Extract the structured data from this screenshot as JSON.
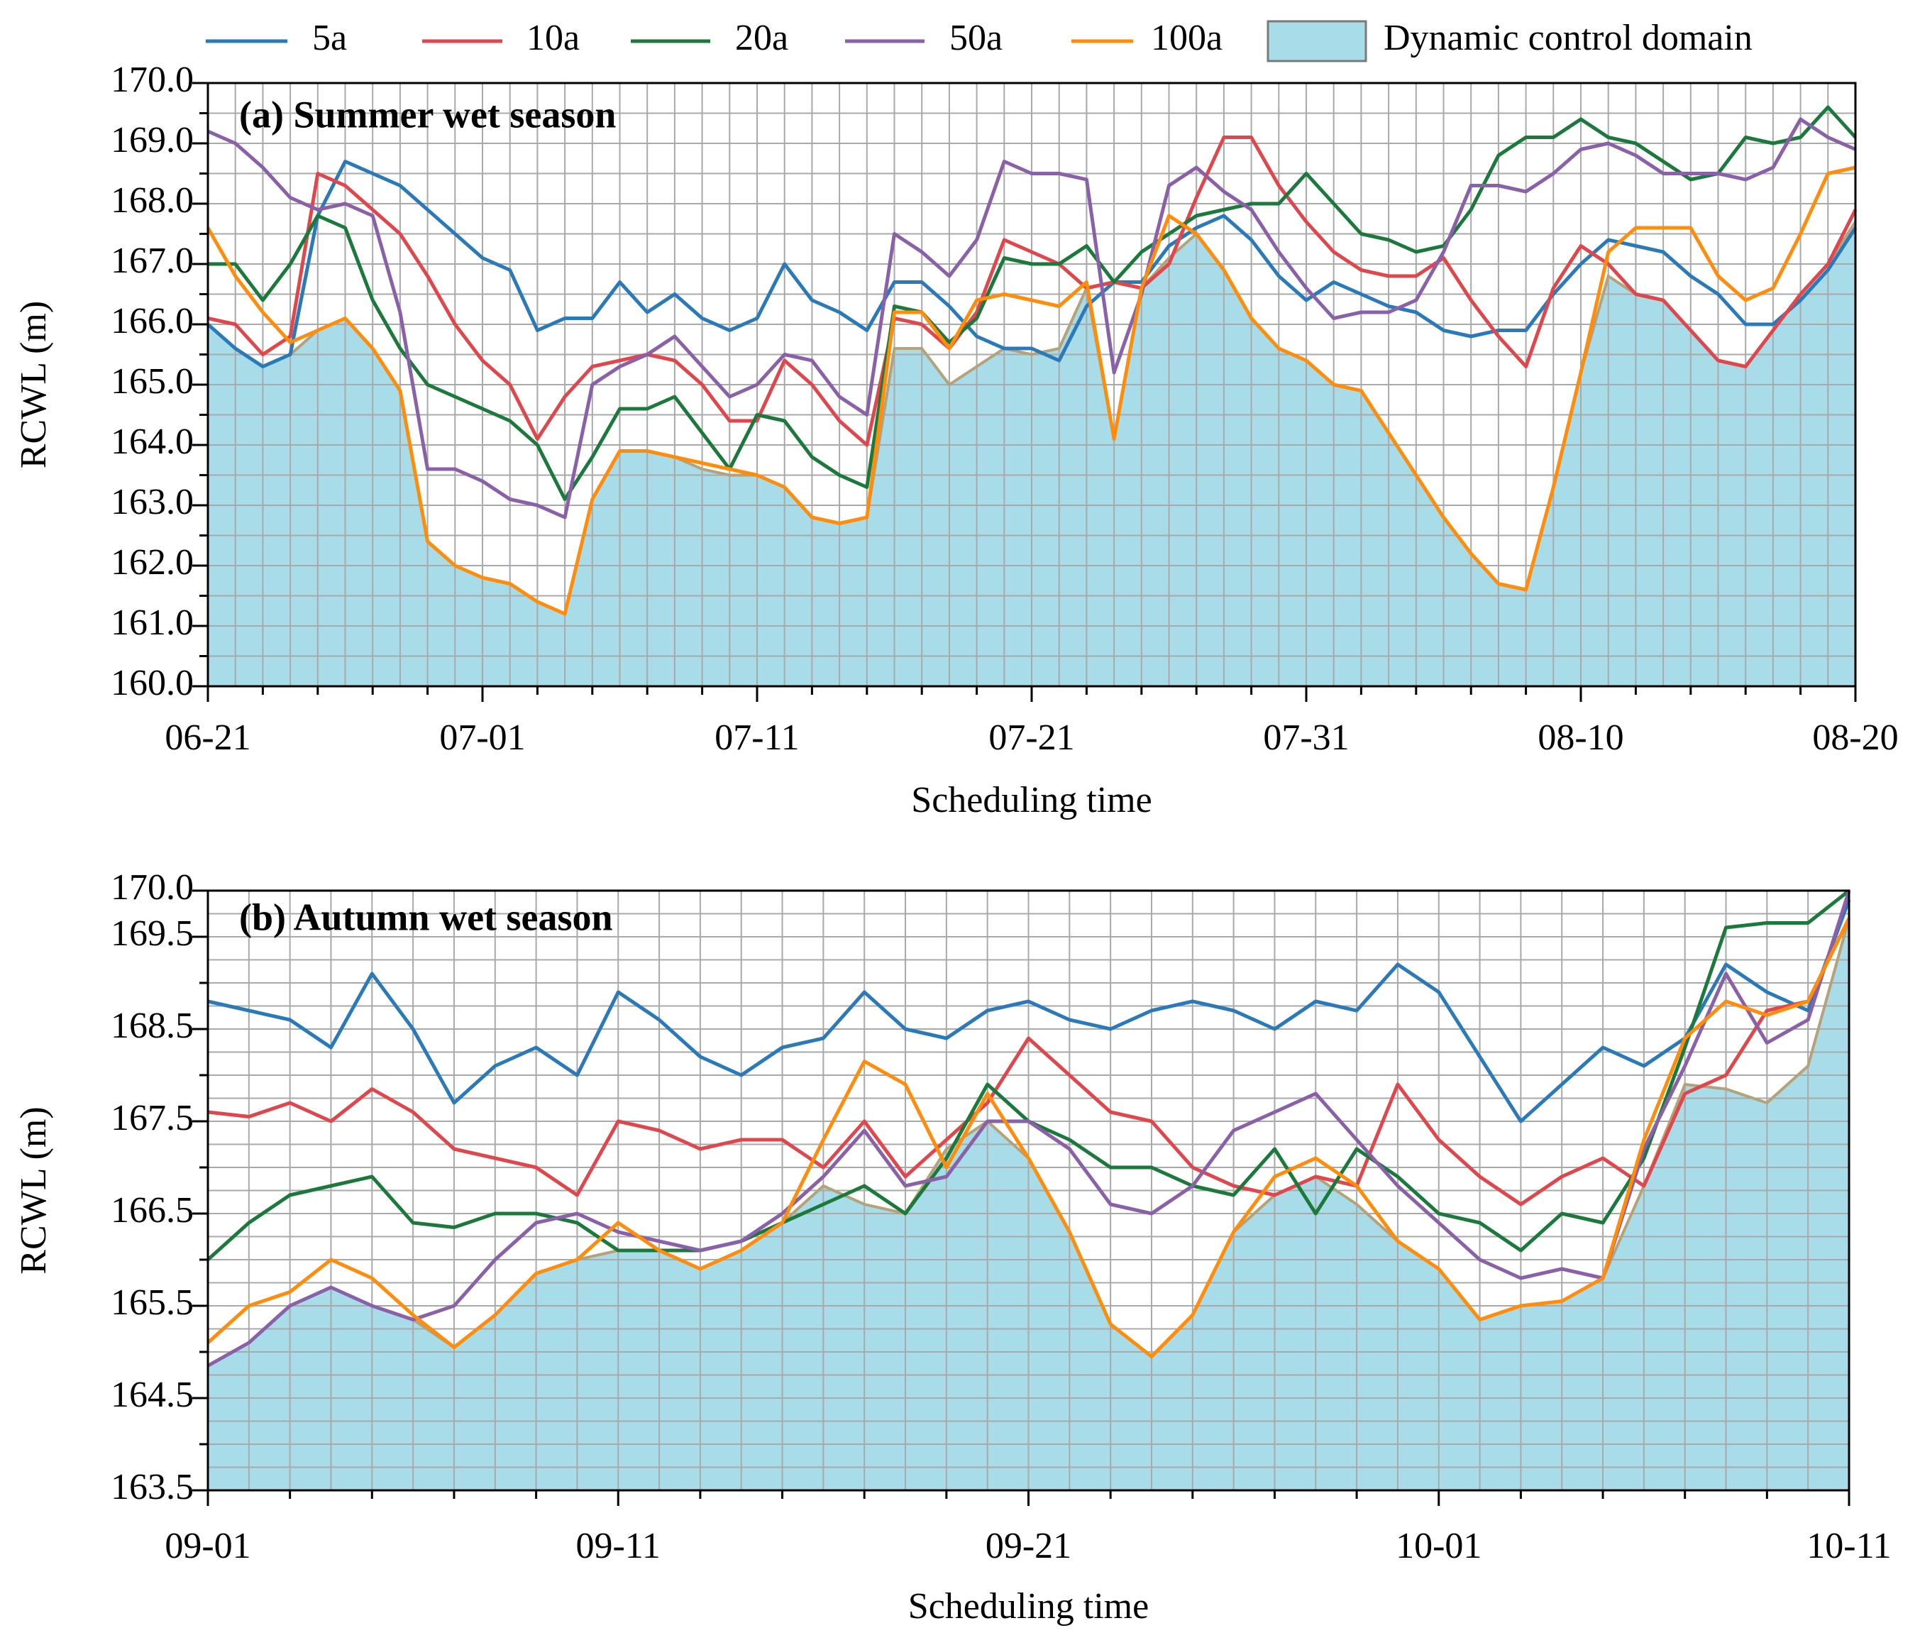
{
  "chart_data": [
    {
      "type": "line",
      "title": "(a) Summer wet season",
      "xlabel": "Scheduling time",
      "ylabel": "RCWL (m)",
      "x": [
        0,
        1,
        2,
        3,
        4,
        5,
        6,
        7,
        8,
        9,
        10,
        11,
        12,
        13,
        14,
        15,
        16,
        17,
        18,
        19,
        20,
        21,
        22,
        23,
        24,
        25,
        26,
        27,
        28,
        29,
        30,
        31,
        32,
        33,
        34,
        35,
        36,
        37,
        38,
        39,
        40,
        41,
        42,
        43,
        44,
        45,
        46,
        47,
        48,
        49,
        50,
        51,
        52,
        53,
        54,
        55,
        56,
        57,
        58,
        59,
        60
      ],
      "xlim": [
        0,
        60
      ],
      "xticks": [
        {
          "value": 0,
          "label": "06-21"
        },
        {
          "value": 10,
          "label": "07-01"
        },
        {
          "value": 20,
          "label": "07-11"
        },
        {
          "value": 30,
          "label": "07-21"
        },
        {
          "value": 40,
          "label": "07-31"
        },
        {
          "value": 50,
          "label": "08-10"
        },
        {
          "value": 60,
          "label": "08-20"
        }
      ],
      "ylim": [
        160,
        170
      ],
      "yticks": [
        {
          "value": 160,
          "label": "160.0"
        },
        {
          "value": 161,
          "label": "161.0"
        },
        {
          "value": 162,
          "label": "162.0"
        },
        {
          "value": 163,
          "label": "163.0"
        },
        {
          "value": 164,
          "label": "164.0"
        },
        {
          "value": 165,
          "label": "165.0"
        },
        {
          "value": 166,
          "label": "166.0"
        },
        {
          "value": 167,
          "label": "167.0"
        },
        {
          "value": 168,
          "label": "168.0"
        },
        {
          "value": 169,
          "label": "169.0"
        },
        {
          "value": 170,
          "label": "170.0"
        }
      ],
      "grid": true,
      "area": {
        "name": "Dynamic control domain",
        "color": "#a8dce8",
        "edge_color": "#b5a27a",
        "values": [
          166.0,
          165.6,
          165.3,
          165.5,
          165.9,
          166.1,
          165.6,
          164.9,
          162.4,
          162.0,
          161.8,
          161.7,
          161.4,
          161.2,
          163.1,
          163.9,
          163.9,
          163.8,
          163.6,
          163.5,
          163.5,
          163.3,
          162.8,
          162.7,
          162.8,
          165.6,
          165.6,
          165.0,
          165.3,
          165.6,
          165.5,
          165.6,
          166.6,
          164.1,
          166.6,
          167.1,
          167.5,
          166.9,
          166.1,
          165.6,
          165.4,
          165.0,
          164.9,
          164.2,
          163.5,
          162.8,
          162.2,
          161.7,
          161.6,
          163.3,
          165.2,
          166.8,
          166.5,
          166.4,
          165.9,
          165.4,
          165.3,
          165.9,
          166.5,
          167.0,
          167.7
        ]
      },
      "series": [
        {
          "name": "5a",
          "color": "#2a7ab9",
          "values": [
            166.0,
            165.6,
            165.3,
            165.5,
            167.8,
            168.7,
            168.5,
            168.3,
            167.9,
            167.5,
            167.1,
            166.9,
            165.9,
            166.1,
            166.1,
            166.7,
            166.2,
            166.5,
            166.1,
            165.9,
            166.1,
            167.0,
            166.4,
            166.2,
            165.9,
            166.7,
            166.7,
            166.3,
            165.8,
            165.6,
            165.6,
            165.4,
            166.3,
            166.7,
            166.7,
            167.3,
            167.6,
            167.8,
            167.4,
            166.8,
            166.4,
            166.7,
            166.5,
            166.3,
            166.2,
            165.9,
            165.8,
            165.9,
            165.9,
            166.5,
            167.0,
            167.4,
            167.3,
            167.2,
            166.8,
            166.5,
            166.0,
            166.0,
            166.4,
            166.9,
            167.6
          ]
        },
        {
          "name": "10a",
          "color": "#e0474c",
          "values": [
            166.1,
            166.0,
            165.5,
            165.8,
            168.5,
            168.3,
            167.9,
            167.5,
            166.8,
            166.0,
            165.4,
            165.0,
            164.1,
            164.8,
            165.3,
            165.4,
            165.5,
            165.4,
            165.0,
            164.4,
            164.4,
            165.4,
            165.0,
            164.4,
            164.0,
            166.1,
            166.0,
            165.6,
            166.2,
            167.4,
            167.2,
            167.0,
            166.6,
            166.7,
            166.6,
            167.0,
            168.1,
            169.1,
            169.1,
            168.3,
            167.7,
            167.2,
            166.9,
            166.8,
            166.8,
            167.1,
            166.4,
            165.8,
            165.3,
            166.6,
            167.3,
            167.0,
            166.5,
            166.4,
            165.9,
            165.4,
            165.3,
            165.9,
            166.5,
            167.0,
            167.9
          ]
        },
        {
          "name": "20a",
          "color": "#1b7a3b",
          "values": [
            167.0,
            167.0,
            166.4,
            167.0,
            167.8,
            167.6,
            166.4,
            165.6,
            165.0,
            164.8,
            164.6,
            164.4,
            164.0,
            163.1,
            163.8,
            164.6,
            164.6,
            164.8,
            164.2,
            163.6,
            164.5,
            164.4,
            163.8,
            163.5,
            163.3,
            166.3,
            166.2,
            165.7,
            166.1,
            167.1,
            167.0,
            167.0,
            167.3,
            166.7,
            167.2,
            167.5,
            167.8,
            167.9,
            168.0,
            168.0,
            168.5,
            168.0,
            167.5,
            167.4,
            167.2,
            167.3,
            167.9,
            168.8,
            169.1,
            169.1,
            169.4,
            169.1,
            169.0,
            168.7,
            168.4,
            168.5,
            169.1,
            169.0,
            169.1,
            169.6,
            169.1
          ]
        },
        {
          "name": "50a",
          "color": "#8a60a8",
          "values": [
            169.2,
            169.0,
            168.6,
            168.1,
            167.9,
            168.0,
            167.8,
            166.2,
            163.6,
            163.6,
            163.4,
            163.1,
            163.0,
            162.8,
            165.0,
            165.3,
            165.5,
            165.8,
            165.3,
            164.8,
            165.0,
            165.5,
            165.4,
            164.8,
            164.5,
            167.5,
            167.2,
            166.8,
            167.4,
            168.7,
            168.5,
            168.5,
            168.4,
            165.2,
            166.5,
            168.3,
            168.6,
            168.2,
            167.9,
            167.2,
            166.6,
            166.1,
            166.2,
            166.2,
            166.4,
            167.2,
            168.3,
            168.3,
            168.2,
            168.5,
            168.9,
            169.0,
            168.8,
            168.5,
            168.5,
            168.5,
            168.4,
            168.6,
            169.4,
            169.1,
            168.9
          ]
        },
        {
          "name": "100a",
          "color": "#ff8c0a",
          "values": [
            167.6,
            166.8,
            166.2,
            165.7,
            165.9,
            166.1,
            165.6,
            164.9,
            162.4,
            162.0,
            161.8,
            161.7,
            161.4,
            161.2,
            163.1,
            163.9,
            163.9,
            163.8,
            163.7,
            163.6,
            163.5,
            163.3,
            162.8,
            162.7,
            162.8,
            166.2,
            166.2,
            165.6,
            166.4,
            166.5,
            166.4,
            166.3,
            166.7,
            164.1,
            166.6,
            167.8,
            167.5,
            166.9,
            166.1,
            165.6,
            165.4,
            165.0,
            164.9,
            164.2,
            163.5,
            162.8,
            162.2,
            161.7,
            161.6,
            163.3,
            165.2,
            167.2,
            167.6,
            167.6,
            167.6,
            166.8,
            166.4,
            166.6,
            167.5,
            168.5,
            168.6
          ]
        }
      ]
    },
    {
      "type": "line",
      "title": "(b) Autumn wet season",
      "xlabel": "Scheduling time",
      "ylabel": "RCWL (m)",
      "x": [
        0,
        1,
        2,
        3,
        4,
        5,
        6,
        7,
        8,
        9,
        10,
        11,
        12,
        13,
        14,
        15,
        16,
        17,
        18,
        19,
        20,
        21,
        22,
        23,
        24,
        25,
        26,
        27,
        28,
        29,
        30,
        31,
        32,
        33,
        34,
        35,
        36,
        37,
        38,
        39,
        40
      ],
      "xlim": [
        0,
        40
      ],
      "xticks": [
        {
          "value": 0,
          "label": "09-01"
        },
        {
          "value": 10,
          "label": "09-11"
        },
        {
          "value": 20,
          "label": "09-21"
        },
        {
          "value": 30,
          "label": "10-01"
        },
        {
          "value": 40,
          "label": "10-11"
        }
      ],
      "ylim": [
        163.5,
        170
      ],
      "yticks": [
        163.5,
        164.5,
        165.5,
        166.5,
        167.5,
        168.5,
        169.5,
        {
          "value": 170,
          "label": "170.0"
        }
      ],
      "grid": true,
      "area": {
        "color": "#a8dce8",
        "edge_color": "#b5a27a",
        "values": [
          164.85,
          165.1,
          165.5,
          165.7,
          165.5,
          165.35,
          165.05,
          165.4,
          165.85,
          166.0,
          166.1,
          166.1,
          165.9,
          166.1,
          166.4,
          166.8,
          166.6,
          166.5,
          167.2,
          167.5,
          167.1,
          166.3,
          165.3,
          164.95,
          165.4,
          166.3,
          166.7,
          166.9,
          166.6,
          166.2,
          165.9,
          165.35,
          165.5,
          165.55,
          165.8,
          166.8,
          167.9,
          167.85,
          167.7,
          168.1,
          169.7
        ]
      },
      "series": [
        {
          "color": "#2a7ab9",
          "values": [
            168.8,
            168.7,
            168.6,
            168.3,
            169.1,
            168.5,
            167.7,
            168.1,
            168.3,
            168.0,
            168.9,
            168.6,
            168.2,
            168.0,
            168.3,
            168.4,
            168.9,
            168.5,
            168.4,
            168.7,
            168.8,
            168.6,
            168.5,
            168.7,
            168.8,
            168.7,
            168.5,
            168.8,
            168.7,
            169.2,
            168.9,
            168.2,
            167.5,
            167.9,
            168.3,
            168.1,
            168.4,
            169.2,
            168.9,
            168.7,
            169.9
          ]
        },
        {
          "color": "#e0474c",
          "values": [
            167.6,
            167.55,
            167.7,
            167.5,
            167.85,
            167.6,
            167.2,
            167.1,
            167.0,
            166.7,
            167.5,
            167.4,
            167.2,
            167.3,
            167.3,
            167.0,
            167.5,
            166.9,
            167.3,
            167.7,
            168.4,
            168.0,
            167.6,
            167.5,
            167.0,
            166.8,
            166.7,
            166.9,
            166.8,
            167.9,
            167.3,
            166.9,
            166.6,
            166.9,
            167.1,
            166.8,
            167.8,
            168.0,
            168.7,
            168.8,
            169.7
          ]
        },
        {
          "color": "#1b7a3b",
          "values": [
            166.0,
            166.4,
            166.7,
            166.8,
            166.9,
            166.4,
            166.35,
            166.5,
            166.5,
            166.4,
            166.1,
            166.1,
            166.1,
            166.2,
            166.4,
            166.6,
            166.8,
            166.5,
            167.1,
            167.9,
            167.5,
            167.3,
            167.0,
            167.0,
            166.8,
            166.7,
            167.2,
            166.5,
            167.2,
            166.9,
            166.5,
            166.4,
            166.1,
            166.5,
            166.4,
            167.1,
            168.3,
            169.6,
            169.65,
            169.65,
            170.0
          ]
        },
        {
          "color": "#8a60a8",
          "values": [
            164.85,
            165.1,
            165.5,
            165.7,
            165.5,
            165.35,
            165.5,
            166.0,
            166.4,
            166.5,
            166.3,
            166.2,
            166.1,
            166.2,
            166.5,
            166.9,
            167.4,
            166.8,
            166.9,
            167.5,
            167.5,
            167.2,
            166.6,
            166.5,
            166.8,
            167.4,
            167.6,
            167.8,
            167.3,
            166.8,
            166.4,
            166.0,
            165.8,
            165.9,
            165.8,
            167.2,
            168.1,
            169.1,
            168.35,
            168.6,
            170.0
          ]
        },
        {
          "color": "#ff8c0a",
          "values": [
            165.1,
            165.5,
            165.65,
            166.0,
            165.8,
            165.4,
            165.05,
            165.4,
            165.85,
            166.0,
            166.4,
            166.1,
            165.9,
            166.1,
            166.4,
            167.3,
            168.15,
            167.9,
            167.0,
            167.8,
            167.1,
            166.3,
            165.3,
            164.95,
            165.4,
            166.3,
            166.9,
            167.1,
            166.8,
            166.2,
            165.9,
            165.35,
            165.5,
            165.55,
            165.8,
            167.3,
            168.4,
            168.8,
            168.65,
            168.8,
            169.7
          ]
        }
      ]
    }
  ]
}
